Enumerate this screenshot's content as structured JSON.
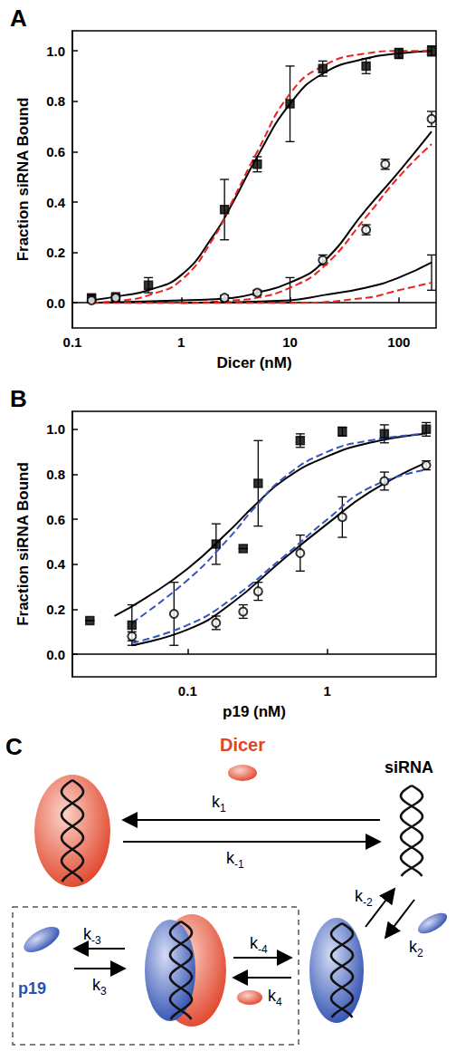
{
  "chart_data": [
    {
      "type": "scatter",
      "title": "A",
      "x_label": "Dicer (nM)",
      "y_label": "Fraction siRNA Bound",
      "log": "x",
      "grid": false,
      "xlim": [
        0.1,
        220
      ],
      "xticks": [
        0.1,
        1,
        10,
        100
      ],
      "ylim": [
        -0.1,
        1.08
      ],
      "yticks": [
        {
          "value": 0,
          "label": "0.0"
        },
        0.2,
        0.4,
        0.6,
        0.8,
        {
          "value": 1,
          "label": "1.0"
        }
      ],
      "series": [
        {
          "type": "scatter",
          "marker": "square",
          "color": "#000000",
          "x": [
            0.15,
            0.25,
            0.5,
            2.5,
            5,
            10,
            20,
            50,
            100,
            200
          ],
          "values": [
            0.02,
            0.02,
            0.07,
            0.37,
            0.55,
            0.79,
            0.93,
            0.94,
            0.99,
            1.0
          ],
          "errors": [
            0.01,
            0.02,
            0.03,
            0.12,
            0.03,
            0.15,
            0.03,
            0.03,
            0.02,
            0.02
          ]
        },
        {
          "type": "scatter",
          "marker": "open_circle",
          "color": "#000000",
          "x": [
            0.15,
            0.25,
            2.5,
            5,
            20,
            50,
            75,
            200
          ],
          "values": [
            0.01,
            0.02,
            0.02,
            0.04,
            0.17,
            0.29,
            0.55,
            0.73
          ],
          "errors": [
            0.01,
            0.01,
            0.01,
            0.01,
            0.02,
            0.02,
            0.02,
            0.03
          ]
        },
        {
          "type": "scatter",
          "marker": "none",
          "color": "#000000",
          "x": [
            10,
            200
          ],
          "values": [
            0.05,
            0.12
          ],
          "errors": [
            0.05,
            0.07
          ]
        },
        {
          "type": "line",
          "line_style": "solid",
          "color": "#000000",
          "x": [
            0.15,
            0.3,
            0.5,
            1,
            2,
            3,
            5,
            10,
            20,
            50,
            100,
            200
          ],
          "values": [
            0.01,
            0.03,
            0.05,
            0.11,
            0.27,
            0.4,
            0.58,
            0.79,
            0.91,
            0.97,
            0.99,
            1.0
          ]
        },
        {
          "type": "line",
          "line_style": "dashed",
          "color": "#e8251f",
          "x": [
            0.15,
            0.3,
            0.5,
            1,
            2,
            3,
            5,
            10,
            20,
            50,
            100,
            200
          ],
          "values": [
            0.0,
            0.01,
            0.03,
            0.09,
            0.26,
            0.41,
            0.6,
            0.83,
            0.94,
            0.99,
            1.0,
            1.0
          ]
        },
        {
          "type": "line",
          "line_style": "solid",
          "color": "#000000",
          "x": [
            0.15,
            1,
            3,
            5,
            10,
            20,
            50,
            100,
            200
          ],
          "values": [
            0.0,
            0.01,
            0.02,
            0.04,
            0.08,
            0.16,
            0.37,
            0.52,
            0.68
          ]
        },
        {
          "type": "line",
          "line_style": "dashed",
          "color": "#e8251f",
          "x": [
            0.15,
            1,
            3,
            5,
            10,
            20,
            50,
            100,
            200
          ],
          "values": [
            0.0,
            0.0,
            0.01,
            0.02,
            0.06,
            0.14,
            0.34,
            0.5,
            0.63
          ]
        },
        {
          "type": "line",
          "line_style": "solid",
          "color": "#000000",
          "x": [
            1,
            10,
            20,
            50,
            100,
            200
          ],
          "values": [
            0.0,
            0.01,
            0.03,
            0.06,
            0.1,
            0.16
          ]
        },
        {
          "type": "line",
          "line_style": "dashed",
          "color": "#e8251f",
          "x": [
            1,
            10,
            50,
            100,
            200
          ],
          "values": [
            0.0,
            0.0,
            0.02,
            0.05,
            0.08
          ]
        }
      ]
    },
    {
      "type": "scatter",
      "title": "B",
      "x_label": "p19 (nM)",
      "y_label": "Fraction siRNA Bound",
      "log": "x",
      "grid": false,
      "xlim": [
        0.015,
        6
      ],
      "xticks": [
        0.1,
        1
      ],
      "ylim": [
        -0.1,
        1.08
      ],
      "yticks": [
        {
          "value": 0,
          "label": "0.0"
        },
        0.2,
        0.4,
        0.6,
        0.8,
        {
          "value": 1,
          "label": "1.0"
        }
      ],
      "series": [
        {
          "type": "scatter",
          "marker": "square",
          "color": "#000000",
          "x": [
            0.02,
            0.04,
            0.16,
            0.25,
            0.32,
            0.64,
            1.28,
            2.56,
            5.1
          ],
          "values": [
            0.15,
            0.13,
            0.49,
            0.47,
            0.76,
            0.95,
            0.99,
            0.98,
            1.0
          ],
          "errors": [
            0.0,
            0.09,
            0.09,
            0.0,
            0.19,
            0.03,
            0.02,
            0.04,
            0.03
          ]
        },
        {
          "type": "scatter",
          "marker": "open_circle",
          "color": "#000000",
          "x": [
            0.04,
            0.08,
            0.16,
            0.25,
            0.32,
            0.64,
            1.28,
            2.56,
            5.1
          ],
          "values": [
            0.08,
            0.18,
            0.14,
            0.19,
            0.28,
            0.45,
            0.61,
            0.77,
            0.84
          ],
          "errors": [
            0.02,
            0.14,
            0.03,
            0.03,
            0.04,
            0.08,
            0.09,
            0.04,
            0.02
          ]
        },
        {
          "type": "line",
          "line_style": "solid",
          "color": "#000000",
          "x": [
            0.03,
            0.05,
            0.1,
            0.2,
            0.3,
            0.5,
            1,
            2,
            5
          ],
          "values": [
            0.17,
            0.25,
            0.38,
            0.55,
            0.66,
            0.78,
            0.88,
            0.94,
            0.98
          ]
        },
        {
          "type": "line",
          "line_style": "dashed",
          "color": "#3355bb",
          "x": [
            0.04,
            0.1,
            0.2,
            0.3,
            0.5,
            1,
            2,
            5
          ],
          "values": [
            0.14,
            0.33,
            0.52,
            0.65,
            0.79,
            0.9,
            0.95,
            0.98
          ]
        },
        {
          "type": "line",
          "line_style": "solid",
          "color": "#000000",
          "x": [
            0.04,
            0.1,
            0.2,
            0.5,
            1,
            2,
            5
          ],
          "values": [
            0.04,
            0.11,
            0.22,
            0.43,
            0.58,
            0.72,
            0.85
          ]
        },
        {
          "type": "line",
          "line_style": "dashed",
          "color": "#3355bb",
          "x": [
            0.04,
            0.1,
            0.2,
            0.5,
            1,
            2,
            5
          ],
          "values": [
            0.05,
            0.13,
            0.24,
            0.44,
            0.6,
            0.74,
            0.82
          ]
        }
      ]
    }
  ],
  "diagram": {
    "panel": "C",
    "labels": {
      "dicer": "Dicer",
      "sirna": "siRNA",
      "p19": "p19"
    },
    "rates": {
      "k1": {
        "symbol": "k",
        "subscript": "1"
      },
      "k_1": {
        "symbol": "k",
        "subscript": "-1"
      },
      "k2": {
        "symbol": "k",
        "subscript": "2"
      },
      "k_2": {
        "symbol": "k",
        "subscript": "-2"
      },
      "k3": {
        "symbol": "k",
        "subscript": "3"
      },
      "k_3": {
        "symbol": "k",
        "subscript": "-3"
      },
      "k4": {
        "symbol": "k",
        "subscript": "4"
      },
      "k_4": {
        "symbol": "k",
        "subscript": "-4"
      }
    }
  }
}
